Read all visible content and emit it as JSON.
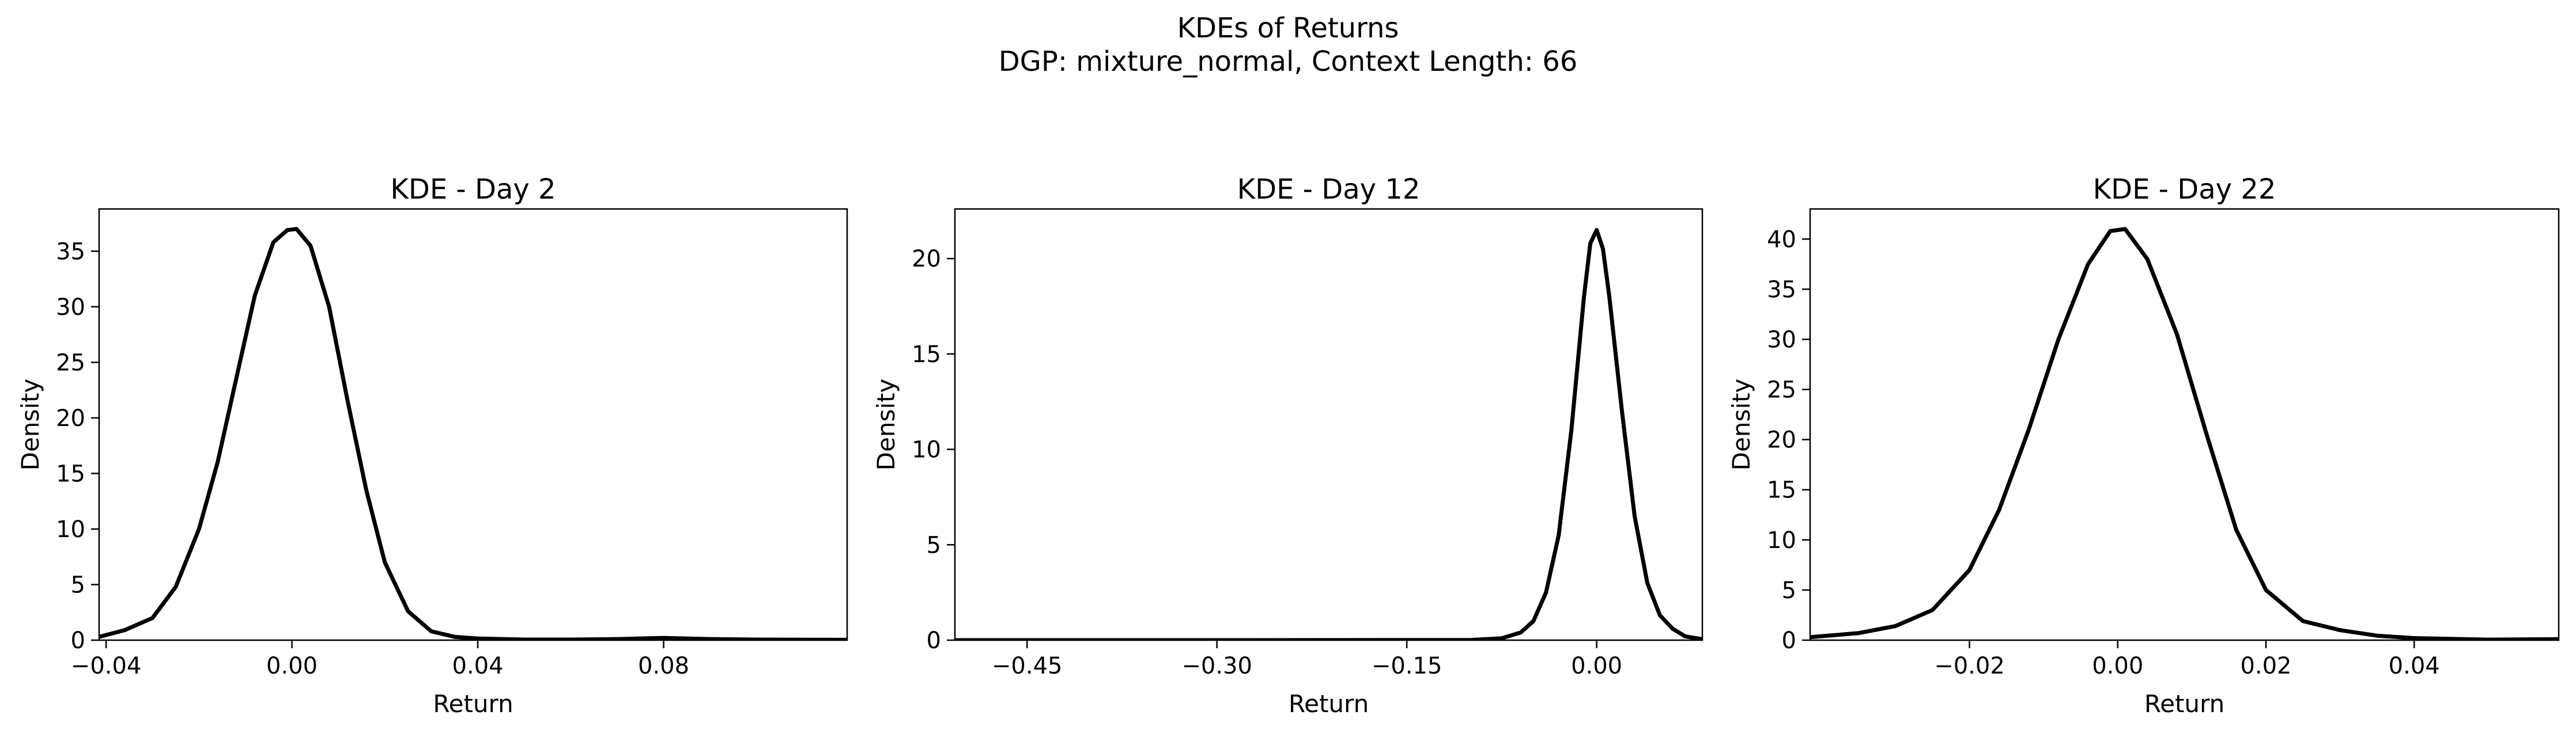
{
  "figure": {
    "title_line1": "KDEs of Returns",
    "title_line2": "DGP: mixture_normal, Context Length: 66"
  },
  "chart_data": [
    {
      "type": "line",
      "title": "KDE - Day 2",
      "xlabel": "Return",
      "ylabel": "Density",
      "xlim": [
        -0.0415,
        0.1195
      ],
      "ylim": [
        0,
        38.8
      ],
      "xticks": [
        -0.04,
        0.0,
        0.04,
        0.08
      ],
      "xtick_labels": [
        "−0.04",
        "0.00",
        "0.04",
        "0.08"
      ],
      "yticks": [
        0,
        5,
        10,
        15,
        20,
        25,
        30,
        35
      ],
      "ytick_labels": [
        "0",
        "5",
        "10",
        "15",
        "20",
        "25",
        "30",
        "35"
      ],
      "line_color": "#000000",
      "grid": false,
      "series": [
        {
          "x": [
            -0.0415,
            -0.036,
            -0.03,
            -0.025,
            -0.02,
            -0.016,
            -0.012,
            -0.008,
            -0.004,
            -0.001,
            0.001,
            0.004,
            0.008,
            0.012,
            0.016,
            0.02,
            0.025,
            0.03,
            0.035,
            0.04,
            0.05,
            0.06,
            0.07,
            0.08,
            0.09,
            0.1,
            0.1195
          ],
          "y": [
            0.3,
            0.9,
            2.0,
            4.8,
            10.0,
            16.0,
            23.5,
            31.0,
            35.8,
            36.9,
            37.0,
            35.5,
            30.0,
            21.5,
            13.5,
            7.0,
            2.6,
            0.8,
            0.3,
            0.15,
            0.05,
            0.05,
            0.1,
            0.2,
            0.1,
            0.05,
            0.03
          ]
        }
      ]
    },
    {
      "type": "line",
      "title": "KDE - Day 12",
      "xlabel": "Return",
      "ylabel": "Density",
      "xlim": [
        -0.507,
        0.0835
      ],
      "ylim": [
        0,
        22.6
      ],
      "xticks": [
        -0.45,
        -0.3,
        -0.15,
        0.0
      ],
      "xtick_labels": [
        "−0.45",
        "−0.30",
        "−0.15",
        "0.00"
      ],
      "yticks": [
        0,
        5,
        10,
        15,
        20
      ],
      "ytick_labels": [
        "0",
        "5",
        "10",
        "15",
        "20"
      ],
      "line_color": "#000000",
      "grid": false,
      "series": [
        {
          "x": [
            -0.507,
            -0.3,
            -0.1,
            -0.075,
            -0.06,
            -0.05,
            -0.04,
            -0.03,
            -0.02,
            -0.01,
            -0.005,
            0.0,
            0.005,
            0.01,
            0.02,
            0.03,
            0.04,
            0.05,
            0.06,
            0.07,
            0.0835
          ],
          "y": [
            0.0,
            0.0,
            0.01,
            0.1,
            0.4,
            1.0,
            2.5,
            5.5,
            11.0,
            18.0,
            20.8,
            21.5,
            20.5,
            18.0,
            12.0,
            6.5,
            3.0,
            1.3,
            0.6,
            0.2,
            0.05
          ]
        }
      ]
    },
    {
      "type": "line",
      "title": "KDE - Day 22",
      "xlabel": "Return",
      "ylabel": "Density",
      "xlim": [
        -0.0415,
        0.0595
      ],
      "ylim": [
        0,
        43.0
      ],
      "xticks": [
        -0.02,
        0.0,
        0.02,
        0.04
      ],
      "xtick_labels": [
        "−0.02",
        "0.00",
        "0.02",
        "0.04"
      ],
      "yticks": [
        0,
        5,
        10,
        15,
        20,
        25,
        30,
        35,
        40
      ],
      "ytick_labels": [
        "0",
        "5",
        "10",
        "15",
        "20",
        "25",
        "30",
        "35",
        "40"
      ],
      "line_color": "#000000",
      "grid": false,
      "series": [
        {
          "x": [
            -0.0415,
            -0.035,
            -0.03,
            -0.025,
            -0.02,
            -0.016,
            -0.012,
            -0.008,
            -0.004,
            -0.001,
            0.001,
            0.004,
            0.008,
            0.012,
            0.016,
            0.02,
            0.025,
            0.03,
            0.035,
            0.04,
            0.05,
            0.0595
          ],
          "y": [
            0.3,
            0.7,
            1.4,
            3.0,
            7.0,
            13.0,
            21.0,
            30.0,
            37.5,
            40.8,
            41.0,
            38.0,
            30.5,
            20.5,
            11.0,
            5.0,
            1.9,
            1.0,
            0.45,
            0.2,
            0.05,
            0.1
          ]
        }
      ]
    }
  ]
}
